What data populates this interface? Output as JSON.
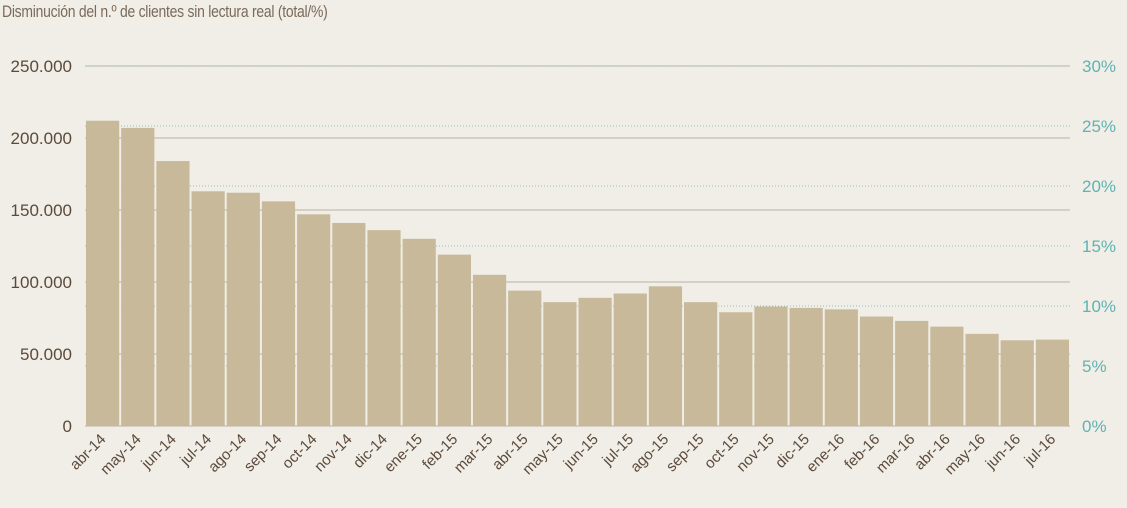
{
  "title": "Disminución del n.º de clientes sin lectura real  (total/%)",
  "colors": {
    "background": "#f0eee6",
    "bar": "#c8b99b",
    "left_axis_text": "#5b4a3c",
    "right_axis_text": "#5fb3b3",
    "grid_left": "#b8b2a4",
    "grid_right": "#8fc4c4"
  },
  "chart_data": {
    "type": "bar",
    "title": "Disminución del n.º de clientes sin lectura real  (total/%)",
    "categories": [
      "abr-14",
      "may-14",
      "jun-14",
      "jul-14",
      "ago-14",
      "sep-14",
      "oct-14",
      "nov-14",
      "dic-14",
      "ene-15",
      "feb-15",
      "mar-15",
      "abr-15",
      "may-15",
      "jun-15",
      "jul-15",
      "ago-15",
      "sep-15",
      "oct-15",
      "nov-15",
      "dic-15",
      "ene-16",
      "feb-16",
      "mar-16",
      "abr-16",
      "may-16",
      "jun-16",
      "jul-16"
    ],
    "values": [
      212000,
      207000,
      184000,
      163000,
      162000,
      156000,
      147000,
      141000,
      136000,
      130000,
      119000,
      105000,
      94000,
      86000,
      89000,
      92000,
      97000,
      86000,
      79000,
      83000,
      82000,
      81000,
      76000,
      73000,
      69000,
      64000,
      59500,
      60000
    ],
    "ylim": [
      0,
      250000
    ],
    "yticks": [
      0,
      50000,
      100000,
      150000,
      200000,
      250000
    ],
    "ytick_labels": [
      "0",
      "50.000",
      "100.000",
      "150.000",
      "200.000",
      "250.000"
    ],
    "y2lim": [
      0,
      30
    ],
    "y2ticks": [
      0,
      5,
      10,
      15,
      20,
      25,
      30
    ],
    "y2tick_labels": [
      "0%",
      "5%",
      "10%",
      "15%",
      "20%",
      "25%",
      "30%"
    ],
    "grid": true,
    "legend": "none"
  }
}
